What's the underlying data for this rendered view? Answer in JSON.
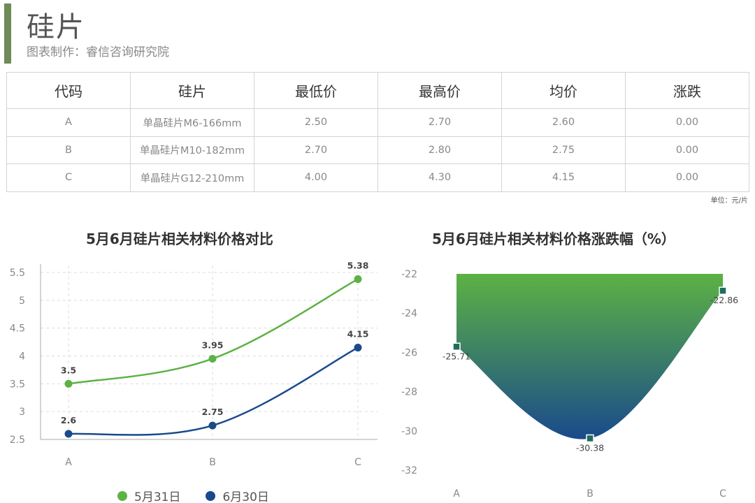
{
  "header": {
    "title": "硅片",
    "subtitle": "图表制作：睿信咨询研究院"
  },
  "table": {
    "headers": [
      "代码",
      "硅片",
      "最低价",
      "最高价",
      "均价",
      "涨跌"
    ],
    "rows": [
      [
        "A",
        "单晶硅片M6-166mm",
        "2.50",
        "2.70",
        "2.60",
        "0.00"
      ],
      [
        "B",
        "单晶硅片M10-182mm",
        "2.70",
        "2.80",
        "2.75",
        "0.00"
      ],
      [
        "C",
        "单晶硅片G12-210mm",
        "4.00",
        "4.30",
        "4.15",
        "0.00"
      ]
    ],
    "unit_note": "单位：元/片"
  },
  "colors": {
    "accent": "#6e8b58",
    "series_may": "#5cb244",
    "series_june": "#1a4a8c",
    "area_top": "#5cb244",
    "area_bottom": "#1a4a8c"
  },
  "chart_data": [
    {
      "type": "line",
      "title": "5月6月硅片相关材料价格对比",
      "categories": [
        "A",
        "B",
        "C"
      ],
      "series": [
        {
          "name": "5月31日",
          "values": [
            3.5,
            3.95,
            5.38
          ]
        },
        {
          "name": "6月30日",
          "values": [
            2.6,
            2.75,
            4.15
          ]
        }
      ],
      "ylim": [
        2.5,
        5.5
      ],
      "yticks": [
        "2.5",
        "3",
        "3.5",
        "4",
        "4.5",
        "5",
        "5.5"
      ],
      "value_labels": [
        [
          "3.5",
          "3.95",
          "5.38"
        ],
        [
          "2.6",
          "2.75",
          "4.15"
        ]
      ],
      "legend": "bottom",
      "grid": true
    },
    {
      "type": "area",
      "title": "5月6月硅片相关材料价格涨跌幅（%）",
      "categories": [
        "A",
        "B",
        "C"
      ],
      "values": [
        -25.71,
        -30.38,
        -22.86
      ],
      "value_labels": [
        "-25.71",
        "-30.38",
        "-22.86"
      ],
      "ylim": [
        -32,
        -22
      ],
      "yticks": [
        "-22",
        "-24",
        "-26",
        "-28",
        "-30",
        "-32"
      ],
      "grid": false
    }
  ]
}
